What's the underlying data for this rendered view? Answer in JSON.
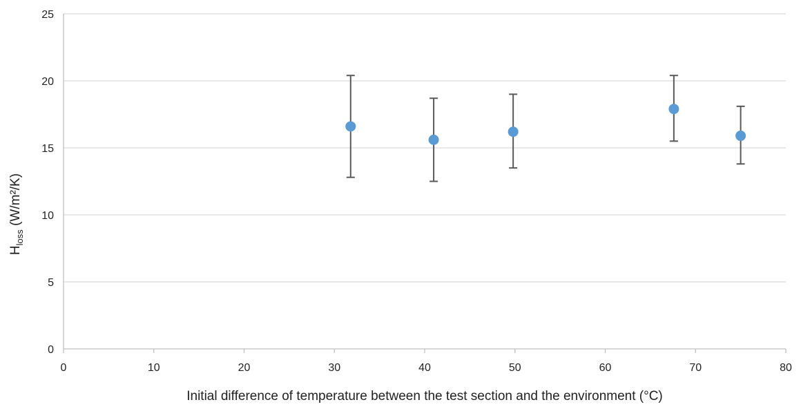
{
  "chart_data": {
    "type": "scatter",
    "title": "",
    "xlabel": "Initial difference of temperature between the test section and the environment  (°C)",
    "ylabel": {
      "main": "H",
      "sub": "loss",
      "rest": " (W/m²/K)"
    },
    "xlim": [
      0,
      80
    ],
    "ylim": [
      0,
      25
    ],
    "xticks": [
      0,
      10,
      20,
      30,
      40,
      50,
      60,
      70,
      80
    ],
    "yticks": [
      0,
      5,
      10,
      15,
      20,
      25
    ],
    "grid": "horizontal",
    "legend": "none",
    "colors": {
      "marker": "#5b9bd5",
      "error_bar": "#595959",
      "grid": "#d9d9d9"
    },
    "series": [
      {
        "points": [
          {
            "x": 31.8,
            "y": 16.6,
            "y_low": 12.8,
            "y_high": 20.4
          },
          {
            "x": 41.0,
            "y": 15.6,
            "y_low": 12.5,
            "y_high": 18.7
          },
          {
            "x": 49.8,
            "y": 16.2,
            "y_low": 13.5,
            "y_high": 19.0
          },
          {
            "x": 67.6,
            "y": 17.9,
            "y_low": 15.5,
            "y_high": 20.4
          },
          {
            "x": 75.0,
            "y": 15.9,
            "y_low": 13.8,
            "y_high": 18.1
          }
        ]
      }
    ]
  }
}
